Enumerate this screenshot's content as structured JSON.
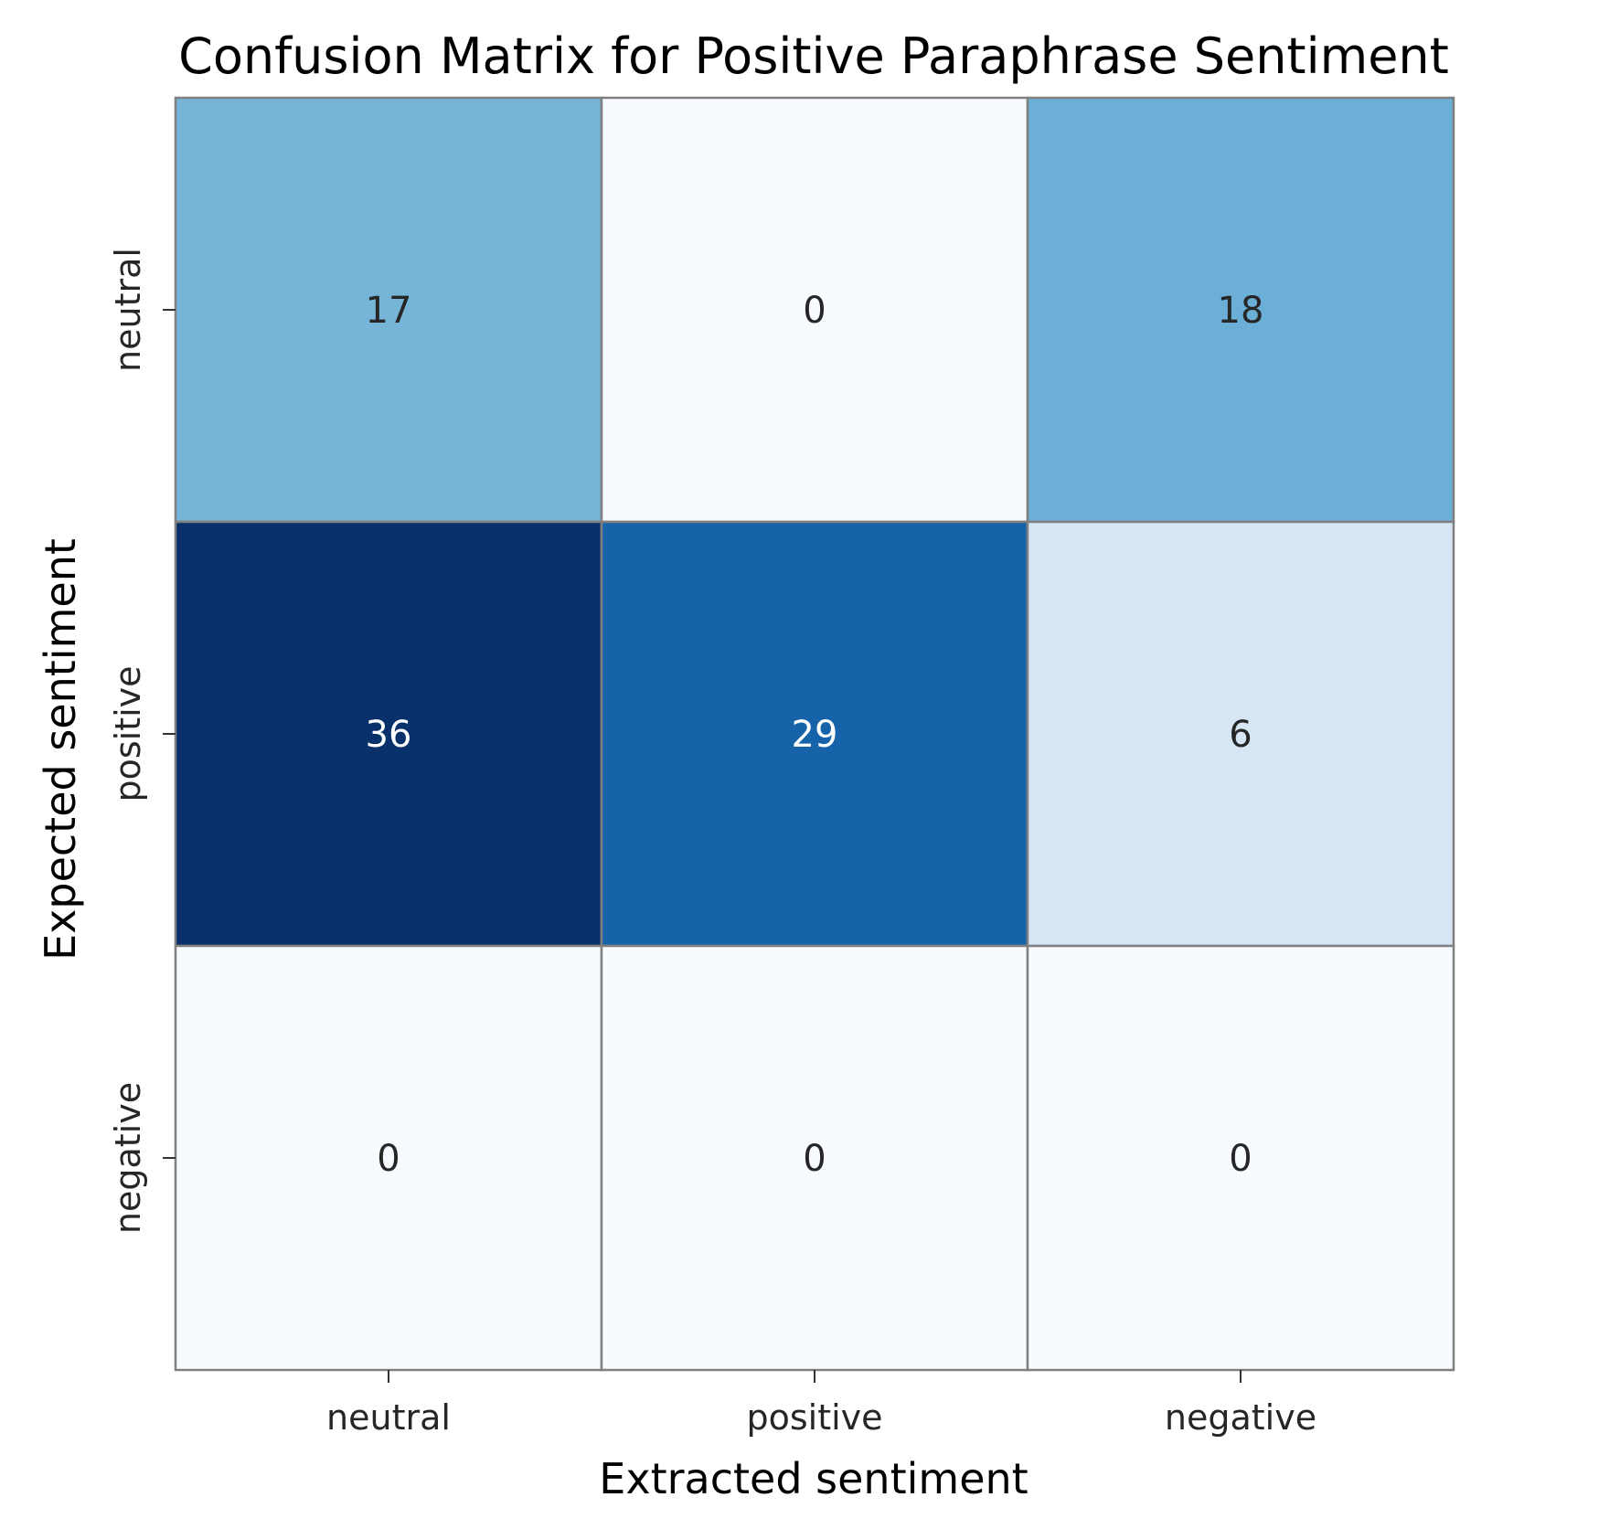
{
  "chart_data": {
    "type": "heatmap",
    "title": "Confusion Matrix for Positive Paraphrase Sentiment",
    "xlabel": "Extracted sentiment",
    "ylabel": "Expected sentiment",
    "x_categories": [
      "neutral",
      "positive",
      "negative"
    ],
    "y_categories": [
      "neutral",
      "positive",
      "negative"
    ],
    "values": [
      [
        17,
        0,
        18
      ],
      [
        36,
        29,
        6
      ],
      [
        0,
        0,
        0
      ]
    ],
    "color_range": [
      0,
      36
    ],
    "colormap": "Blues",
    "colormap_low": "#f7fbff",
    "colormap_high": "#08306b",
    "cell_border_color": "#808080",
    "text_dark": "#262626",
    "text_light": "#ffffff",
    "colorbar": false
  }
}
